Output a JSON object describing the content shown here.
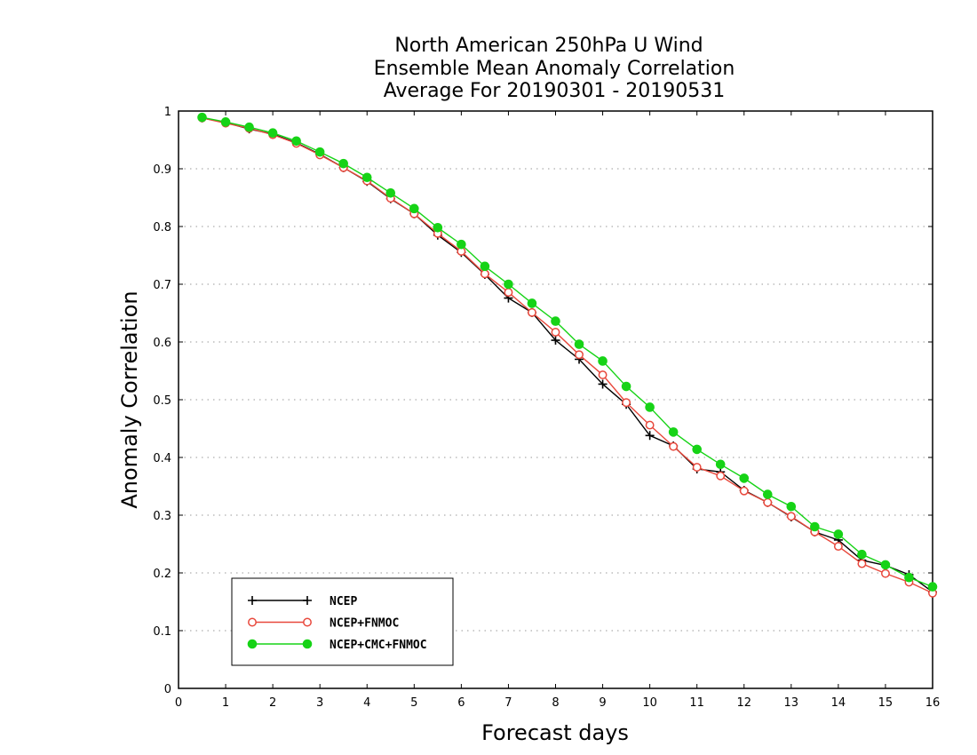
{
  "chart_data": {
    "type": "line",
    "title": [
      "North American 250hPa U Wind",
      "Ensemble Mean Anomaly Correlation",
      "Average For 20190301 - 20190531"
    ],
    "xlabel": "Forecast days",
    "ylabel": "Anomaly Correlation",
    "xlim": [
      0,
      16
    ],
    "ylim": [
      0,
      1
    ],
    "xticks": [
      "0",
      "1",
      "2",
      "3",
      "4",
      "5",
      "6",
      "7",
      "8",
      "9",
      "10",
      "11",
      "12",
      "13",
      "14",
      "15",
      "16"
    ],
    "yticks": [
      "0",
      "0.1",
      "0.2",
      "0.3",
      "0.4",
      "0.5",
      "0.6",
      "0.7",
      "0.8",
      "0.9",
      "1"
    ],
    "grid": "horizontal dotted",
    "legend_position": "bottom-left",
    "x": [
      0.5,
      1,
      1.5,
      2,
      2.5,
      3,
      3.5,
      4,
      4.5,
      5,
      5.5,
      6,
      6.5,
      7,
      7.5,
      8,
      8.5,
      9,
      9.5,
      10,
      10.5,
      11,
      11.5,
      12,
      12.5,
      13,
      13.5,
      14,
      14.5,
      15,
      15.5,
      16
    ],
    "series": [
      {
        "name": "NCEP",
        "color": "#000000",
        "marker": "plus",
        "values": [
          0.988,
          0.98,
          0.969,
          0.96,
          0.945,
          0.925,
          0.902,
          0.878,
          0.848,
          0.822,
          0.785,
          0.755,
          0.717,
          0.676,
          0.651,
          0.603,
          0.57,
          0.527,
          0.492,
          0.438,
          0.42,
          0.38,
          0.375,
          0.343,
          0.322,
          0.297,
          0.271,
          0.257,
          0.222,
          0.213,
          0.197,
          0.167
        ]
      },
      {
        "name": "NCEP+FNMOC",
        "color": "#e8483c",
        "marker": "open-circle",
        "values": [
          0.988,
          0.979,
          0.97,
          0.959,
          0.944,
          0.924,
          0.902,
          0.879,
          0.849,
          0.822,
          0.788,
          0.757,
          0.718,
          0.686,
          0.651,
          0.617,
          0.578,
          0.543,
          0.495,
          0.456,
          0.419,
          0.383,
          0.368,
          0.342,
          0.322,
          0.298,
          0.271,
          0.246,
          0.216,
          0.199,
          0.184,
          0.165
        ]
      },
      {
        "name": "NCEP+CMC+FNMOC",
        "color": "#16d316",
        "marker": "filled-circle",
        "values": [
          0.989,
          0.981,
          0.972,
          0.962,
          0.948,
          0.929,
          0.909,
          0.885,
          0.858,
          0.831,
          0.798,
          0.769,
          0.731,
          0.7,
          0.667,
          0.636,
          0.596,
          0.567,
          0.523,
          0.487,
          0.444,
          0.414,
          0.388,
          0.364,
          0.336,
          0.315,
          0.28,
          0.267,
          0.232,
          0.214,
          0.192,
          0.176
        ]
      }
    ]
  }
}
